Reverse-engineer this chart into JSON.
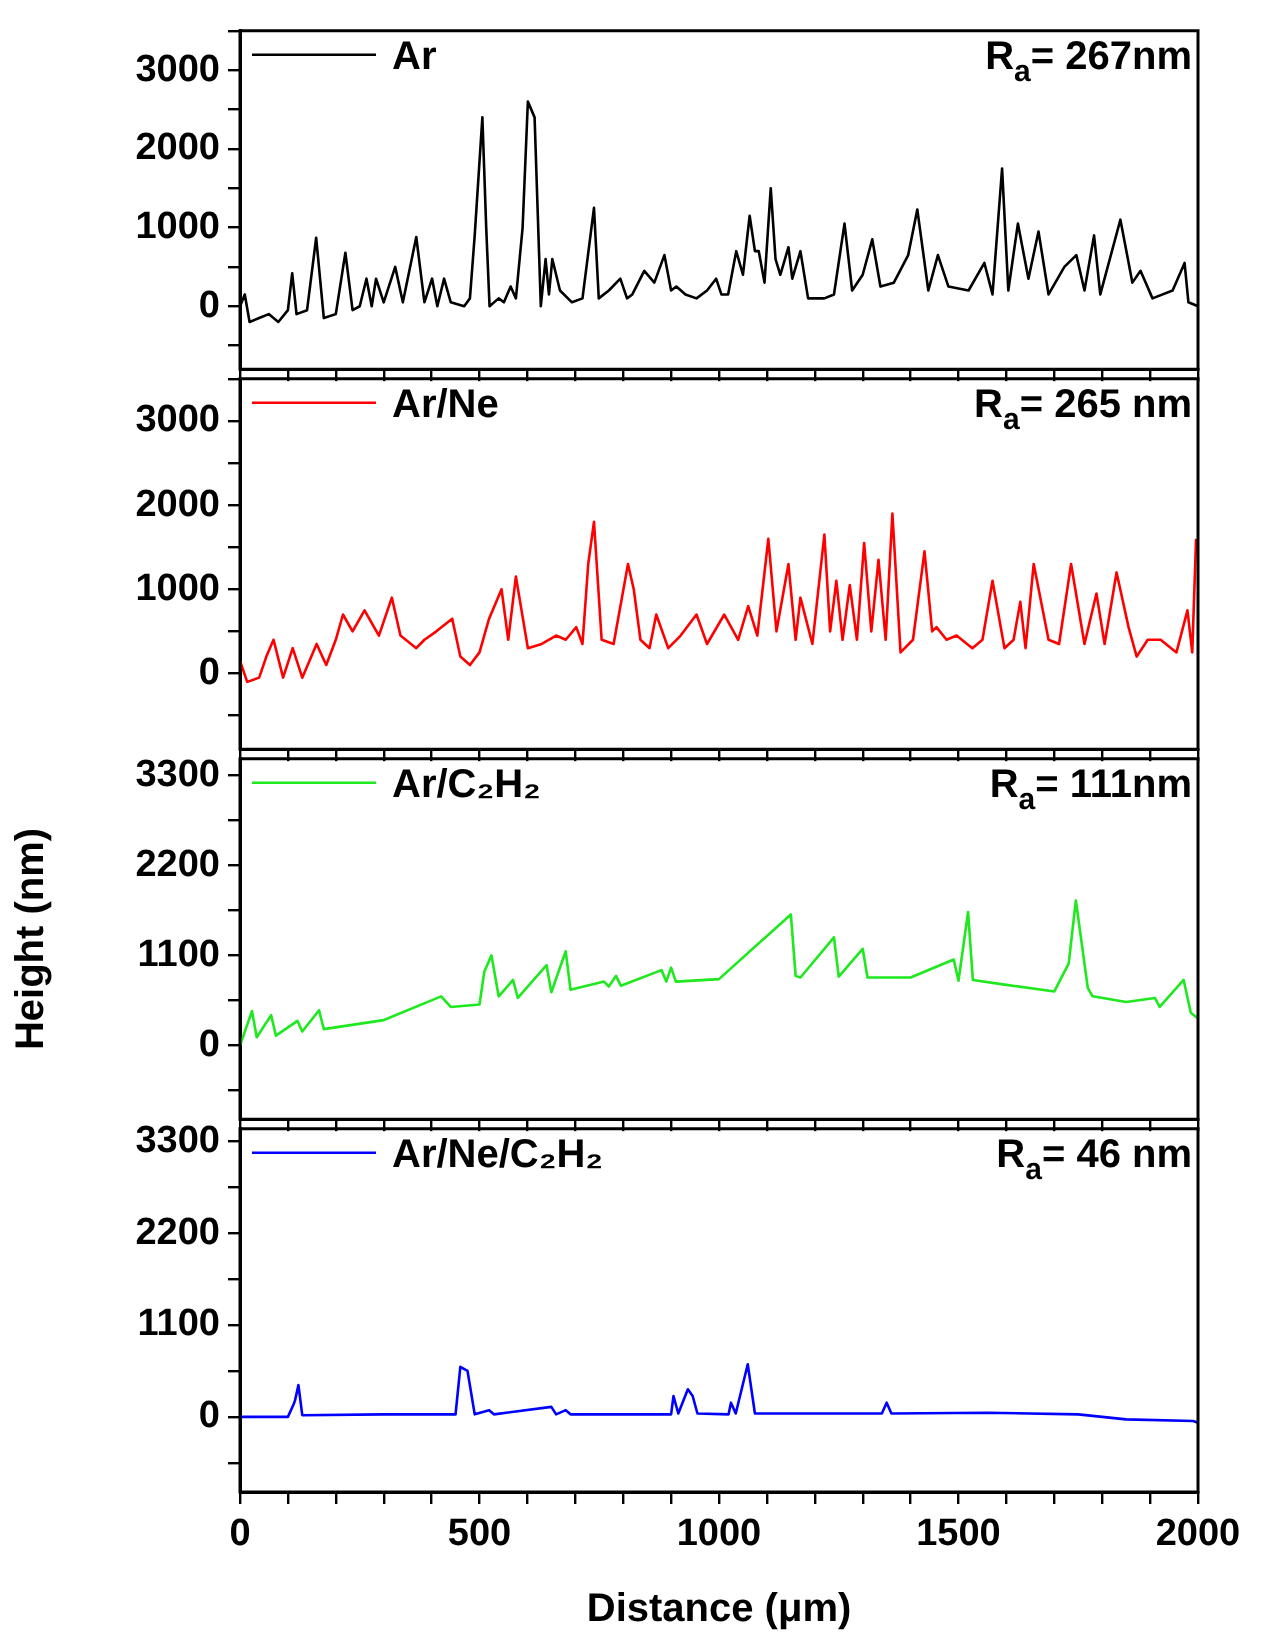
{
  "chart_data": [
    {
      "type": "line",
      "xlim": [
        0,
        2000
      ],
      "xticks": [
        0,
        {
          "value": 100,
          "label": null
        },
        {
          "value": 200,
          "label": null
        },
        {
          "value": 300,
          "label": null
        },
        {
          "value": 400,
          "label": null
        },
        500,
        {
          "value": 600,
          "label": null
        },
        {
          "value": 700,
          "label": null
        },
        {
          "value": 800,
          "label": null
        },
        {
          "value": 900,
          "label": null
        },
        1000,
        {
          "value": 1100,
          "label": null
        },
        {
          "value": 1200,
          "label": null
        },
        {
          "value": 1300,
          "label": null
        },
        {
          "value": 1400,
          "label": null
        },
        1500,
        {
          "value": 1600,
          "label": null
        },
        {
          "value": 1700,
          "label": null
        },
        {
          "value": 1800,
          "label": null
        },
        {
          "value": 1900,
          "label": null
        },
        2000
      ],
      "ylim": [
        -800,
        3500
      ],
      "yticks": [
        {
          "value": -500,
          "label": null
        },
        0,
        {
          "value": 500,
          "label": null
        },
        1000,
        {
          "value": 1500,
          "label": null
        },
        2000,
        {
          "value": 2500,
          "label": null
        },
        3000,
        {
          "value": 3500,
          "label": null
        }
      ],
      "tick_labels": "y",
      "legend": "top left",
      "annotations": [
        "R$_{a}$= 267nm"
      ],
      "series": [
        {
          "name": "Ar",
          "color": "#000000",
          "x": [
            0,
            10,
            20,
            40,
            60,
            80,
            100,
            109,
            118,
            140,
            159,
            175,
            200,
            220,
            235,
            250,
            264,
            275,
            284,
            300,
            324,
            340,
            368,
            385,
            401,
            412,
            426,
            440,
            468,
            480,
            490,
            506,
            514,
            521,
            540,
            551,
            565,
            576,
            590,
            601,
            615,
            628,
            638,
            645,
            652,
            668,
            693,
            715,
            739,
            749,
            770,
            794,
            808,
            819,
            844,
            865,
            886,
            900,
            911,
            930,
            953,
            975,
            994,
            1005,
            1019,
            1036,
            1050,
            1064,
            1075,
            1083,
            1095,
            1108,
            1118,
            1128,
            1145,
            1153,
            1170,
            1186,
            1220,
            1240,
            1262,
            1278,
            1300,
            1320,
            1337,
            1365,
            1395,
            1414,
            1437,
            1457,
            1479,
            1521,
            1554,
            1571,
            1591,
            1604,
            1624,
            1646,
            1667,
            1688,
            1721,
            1746,
            1763,
            1783,
            1796,
            1838,
            1863,
            1880,
            1905,
            1947,
            1972,
            1980,
            2000
          ],
          "values": [
            0,
            150,
            -200,
            -150,
            -100,
            -200,
            -50,
            420,
            -100,
            -50,
            870,
            -150,
            -100,
            680,
            -50,
            0,
            350,
            0,
            350,
            50,
            500,
            50,
            880,
            50,
            350,
            0,
            350,
            50,
            0,
            100,
            900,
            2400,
            1000,
            0,
            100,
            50,
            250,
            100,
            1000,
            2600,
            2400,
            0,
            600,
            150,
            600,
            200,
            50,
            100,
            1250,
            100,
            200,
            350,
            100,
            150,
            450,
            300,
            650,
            200,
            250,
            150,
            100,
            200,
            350,
            150,
            150,
            700,
            400,
            1150,
            700,
            700,
            300,
            1500,
            600,
            400,
            750,
            350,
            700,
            100,
            100,
            150,
            1050,
            200,
            400,
            850,
            250,
            300,
            650,
            1230,
            200,
            650,
            250,
            200,
            550,
            150,
            1750,
            200,
            1050,
            350,
            950,
            150,
            500,
            650,
            200,
            900,
            150,
            1100,
            300,
            450,
            100,
            200,
            550,
            50,
            0
          ]
        }
      ]
    },
    {
      "type": "line",
      "xlim": [
        0,
        2000
      ],
      "xticks": [
        0,
        {
          "value": 100,
          "label": null
        },
        {
          "value": 200,
          "label": null
        },
        {
          "value": 300,
          "label": null
        },
        {
          "value": 400,
          "label": null
        },
        500,
        {
          "value": 600,
          "label": null
        },
        {
          "value": 700,
          "label": null
        },
        {
          "value": 800,
          "label": null
        },
        {
          "value": 900,
          "label": null
        },
        1000,
        {
          "value": 1100,
          "label": null
        },
        {
          "value": 1200,
          "label": null
        },
        {
          "value": 1300,
          "label": null
        },
        {
          "value": 1400,
          "label": null
        },
        1500,
        {
          "value": 1600,
          "label": null
        },
        {
          "value": 1700,
          "label": null
        },
        {
          "value": 1800,
          "label": null
        },
        {
          "value": 1900,
          "label": null
        },
        2000
      ],
      "ylim": [
        -900,
        3500
      ],
      "yticks": [
        {
          "value": -500,
          "label": null
        },
        0,
        {
          "value": 500,
          "label": null
        },
        1000,
        {
          "value": 1500,
          "label": null
        },
        2000,
        {
          "value": 2500,
          "label": null
        },
        3000,
        {
          "value": 3500,
          "label": null
        }
      ],
      "tick_labels": "y",
      "legend": "top left",
      "annotations": [
        "R$_{a}$= 265 nm"
      ],
      "series": [
        {
          "name": "Ar/Ne",
          "color": "#ff0000",
          "x": [
            0,
            15,
            40,
            55,
            70,
            90,
            110,
            130,
            160,
            180,
            200,
            215,
            235,
            260,
            290,
            317,
            335,
            368,
            385,
            410,
            443,
            460,
            480,
            500,
            520,
            546,
            560,
            576,
            601,
            630,
            660,
            680,
            702,
            715,
            727,
            739,
            755,
            780,
            810,
            822,
            836,
            855,
            869,
            894,
            920,
            953,
            975,
            1011,
            1040,
            1061,
            1080,
            1103,
            1120,
            1145,
            1160,
            1170,
            1195,
            1220,
            1232,
            1245,
            1258,
            1273,
            1288,
            1303,
            1318,
            1333,
            1348,
            1362,
            1379,
            1405,
            1429,
            1445,
            1454,
            1475,
            1496,
            1529,
            1550,
            1571,
            1596,
            1615,
            1629,
            1640,
            1657,
            1688,
            1710,
            1735,
            1763,
            1788,
            1805,
            1830,
            1855,
            1872,
            1895,
            1922,
            1955,
            1978,
            1988,
            1996
          ],
          "values": [
            150,
            -100,
            -50,
            200,
            400,
            -50,
            300,
            -50,
            350,
            100,
            400,
            700,
            500,
            750,
            450,
            900,
            450,
            300,
            400,
            500,
            650,
            200,
            100,
            250,
            650,
            1000,
            400,
            1150,
            300,
            350,
            450,
            400,
            550,
            350,
            1300,
            1800,
            400,
            350,
            1300,
            1000,
            400,
            300,
            700,
            300,
            450,
            700,
            350,
            700,
            400,
            800,
            450,
            1600,
            500,
            1300,
            400,
            900,
            350,
            1650,
            500,
            1100,
            400,
            1050,
            400,
            1550,
            500,
            1350,
            400,
            1900,
            250,
            400,
            1450,
            500,
            550,
            400,
            450,
            300,
            400,
            1100,
            300,
            400,
            850,
            300,
            1300,
            400,
            350,
            1300,
            350,
            950,
            350,
            1200,
            550,
            200,
            400,
            400,
            250,
            750,
            250,
            1600
          ]
        }
      ]
    },
    {
      "type": "line",
      "xlim": [
        0,
        2000
      ],
      "xticks": [
        0,
        {
          "value": 100,
          "label": null
        },
        {
          "value": 200,
          "label": null
        },
        {
          "value": 300,
          "label": null
        },
        {
          "value": 400,
          "label": null
        },
        500,
        {
          "value": 600,
          "label": null
        },
        {
          "value": 700,
          "label": null
        },
        {
          "value": 800,
          "label": null
        },
        {
          "value": 900,
          "label": null
        },
        1000,
        {
          "value": 1100,
          "label": null
        },
        {
          "value": 1200,
          "label": null
        },
        {
          "value": 1300,
          "label": null
        },
        {
          "value": 1400,
          "label": null
        },
        1500,
        {
          "value": 1600,
          "label": null
        },
        {
          "value": 1700,
          "label": null
        },
        {
          "value": 1800,
          "label": null
        },
        {
          "value": 1900,
          "label": null
        },
        2000
      ],
      "ylim": [
        -900,
        3500
      ],
      "yticks": [
        {
          "value": -550,
          "label": null
        },
        0,
        {
          "value": 550,
          "label": null
        },
        1100,
        {
          "value": 1650,
          "label": null
        },
        2200,
        {
          "value": 2750,
          "label": null
        },
        3300
      ],
      "tick_labels": "y",
      "legend": "top left",
      "ylabel": "Height (nm)",
      "annotations": [
        "R$_{a}$= 111nm"
      ],
      "series": [
        {
          "name": "Ar/C₂H₂",
          "color": "#1ee81e",
          "x": [
            0,
            25,
            35,
            65,
            75,
            120,
            130,
            165,
            175,
            300,
            420,
            440,
            500,
            510,
            525,
            540,
            570,
            580,
            640,
            650,
            680,
            690,
            760,
            770,
            785,
            795,
            880,
            890,
            900,
            910,
            1000,
            1150,
            1160,
            1170,
            1240,
            1250,
            1300,
            1310,
            1400,
            1490,
            1500,
            1520,
            1530,
            1600,
            1700,
            1730,
            1745,
            1770,
            1780,
            1850,
            1910,
            1920,
            1970,
            1985,
            2000
          ],
          "values": [
            0,
            420,
            100,
            370,
            120,
            300,
            170,
            430,
            200,
            310,
            600,
            470,
            500,
            900,
            1100,
            600,
            800,
            580,
            980,
            650,
            1150,
            680,
            780,
            720,
            850,
            730,
            920,
            780,
            950,
            780,
            810,
            1600,
            850,
            830,
            1320,
            840,
            1180,
            830,
            830,
            1050,
            790,
            1630,
            800,
            740,
            660,
            1000,
            1770,
            700,
            600,
            530,
            580,
            470,
            800,
            400,
            330
          ]
        }
      ]
    },
    {
      "type": "line",
      "xlim": [
        0,
        2000
      ],
      "xticks": [
        0,
        {
          "value": 100,
          "label": null
        },
        {
          "value": 200,
          "label": null
        },
        {
          "value": 300,
          "label": null
        },
        {
          "value": 400,
          "label": null
        },
        500,
        {
          "value": 600,
          "label": null
        },
        {
          "value": 700,
          "label": null
        },
        {
          "value": 800,
          "label": null
        },
        {
          "value": 900,
          "label": null
        },
        1000,
        {
          "value": 1100,
          "label": null
        },
        {
          "value": 1200,
          "label": null
        },
        {
          "value": 1300,
          "label": null
        },
        {
          "value": 1400,
          "label": null
        },
        1500,
        {
          "value": 1600,
          "label": null
        },
        {
          "value": 1700,
          "label": null
        },
        {
          "value": 1800,
          "label": null
        },
        {
          "value": 1900,
          "label": null
        },
        2000
      ],
      "ylim": [
        -900,
        3450
      ],
      "yticks": [
        {
          "value": -550,
          "label": null
        },
        0,
        {
          "value": 550,
          "label": null
        },
        1100,
        {
          "value": 1650,
          "label": null
        },
        2200,
        {
          "value": 2750,
          "label": null
        },
        3300
      ],
      "xlabel": "Distance (μm)",
      "legend": "top left",
      "annotations": [
        "R$_{a}$= 46 nm"
      ],
      "series": [
        {
          "name": "Ar/Ne/C₂H₂",
          "color": "#0000ff",
          "x": [
            0,
            100,
            112,
            115,
            122,
            130,
            300,
            450,
            460,
            475,
            490,
            520,
            530,
            650,
            660,
            680,
            690,
            900,
            905,
            915,
            935,
            945,
            955,
            1020,
            1025,
            1035,
            1060,
            1075,
            1090,
            1340,
            1350,
            1360,
            1560,
            1750,
            1850,
            1990,
            2000
          ],
          "values": [
            0,
            0,
            150,
            200,
            380,
            20,
            30,
            30,
            600,
            550,
            30,
            80,
            30,
            120,
            30,
            80,
            30,
            30,
            250,
            40,
            330,
            250,
            40,
            30,
            170,
            40,
            630,
            40,
            40,
            40,
            170,
            40,
            50,
            30,
            -30,
            -50,
            -70
          ]
        }
      ]
    }
  ]
}
